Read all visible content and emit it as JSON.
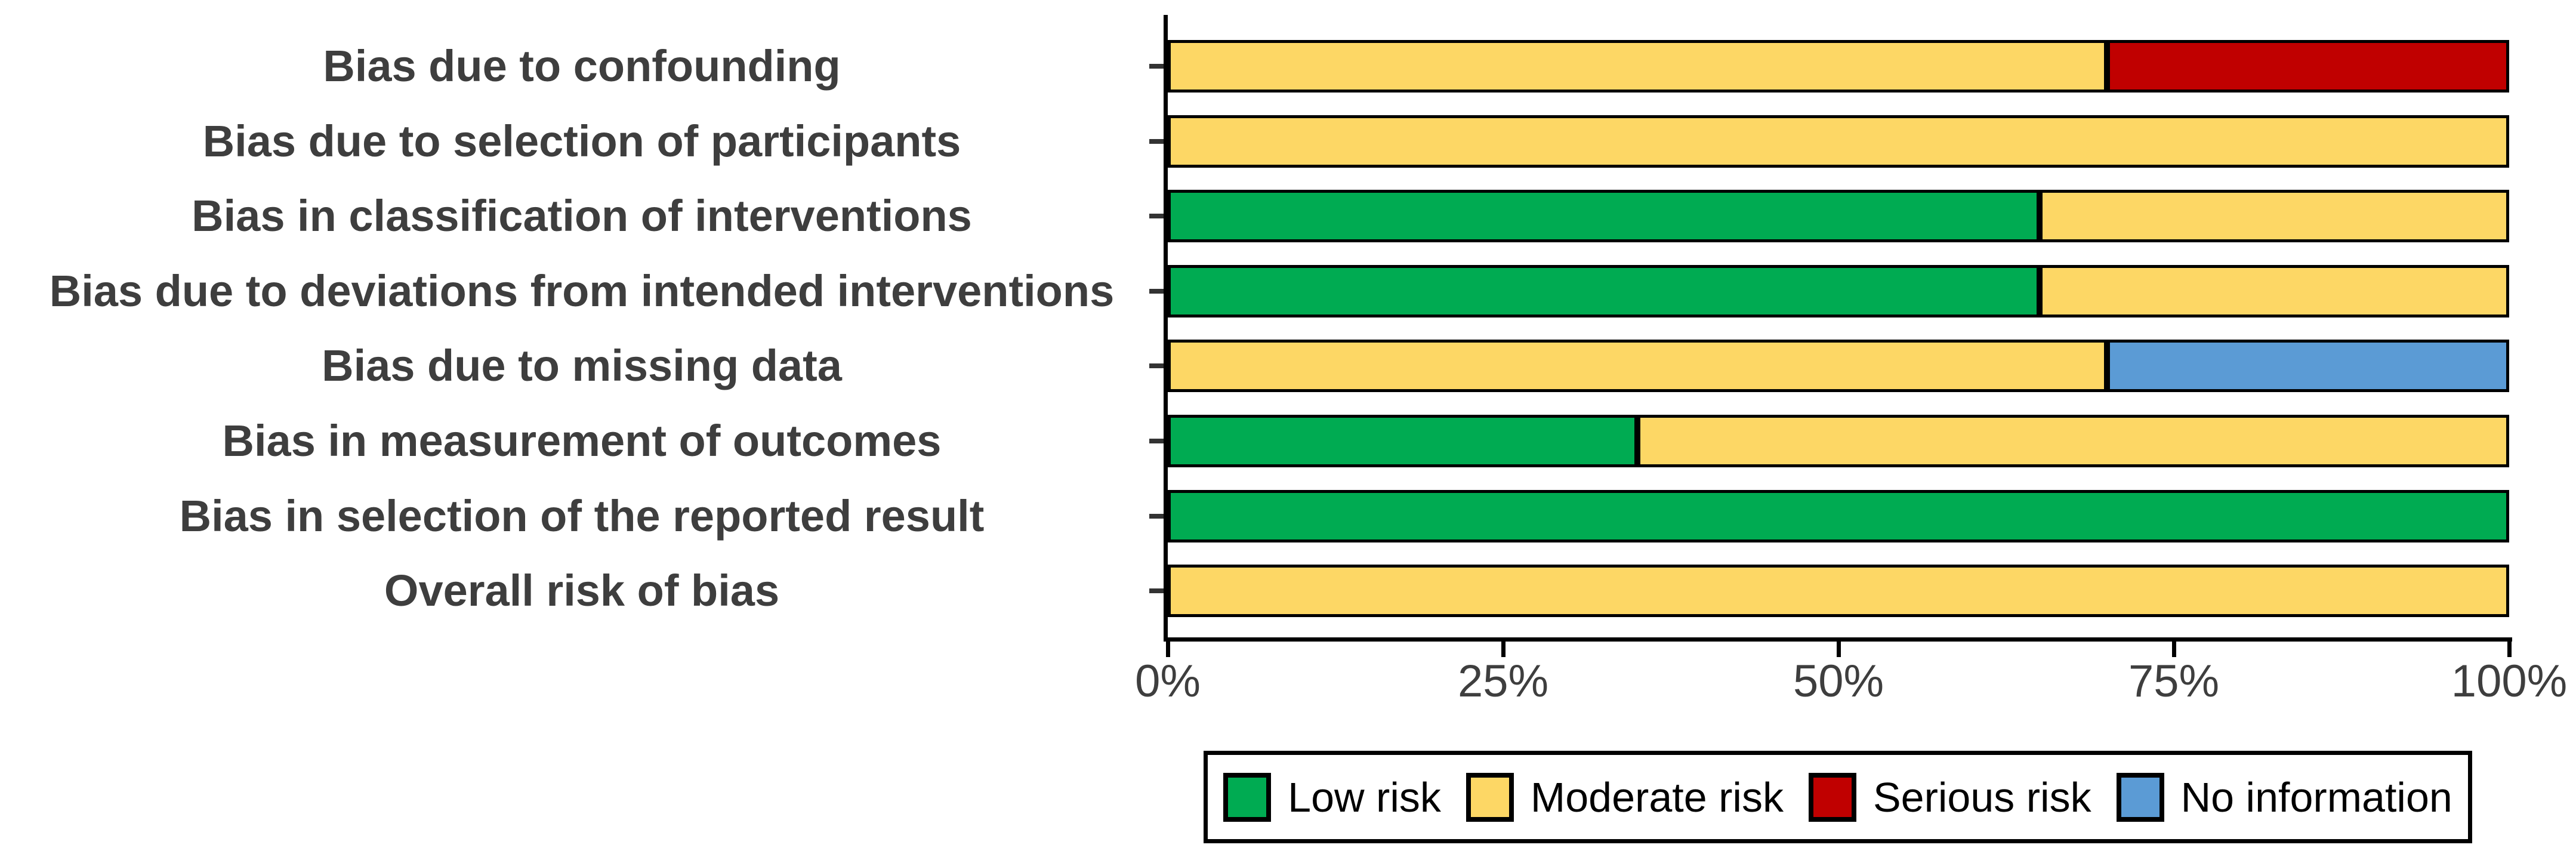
{
  "chart_data": {
    "type": "bar",
    "orientation": "horizontal",
    "stacked": true,
    "title": "",
    "categories": [
      "Bias due to confounding",
      "Bias due to selection of participants",
      "Bias in classification of interventions",
      "Bias due to deviations from intended interventions",
      "Bias due to missing data",
      "Bias in measurement of outcomes",
      "Bias in selection of the reported result",
      "Overall risk of bias"
    ],
    "series": [
      {
        "name": "Low risk",
        "color": "#00ab52",
        "values": [
          0,
          0,
          65,
          65,
          0,
          35,
          100,
          0
        ]
      },
      {
        "name": "Moderate risk",
        "color": "#fdd765",
        "values": [
          70,
          100,
          35,
          35,
          70,
          65,
          0,
          100
        ]
      },
      {
        "name": "Serious risk",
        "color": "#c00000",
        "values": [
          30,
          0,
          0,
          0,
          0,
          0,
          0,
          0
        ]
      },
      {
        "name": "No information",
        "color": "#5b9bd5",
        "values": [
          0,
          0,
          0,
          0,
          30,
          0,
          0,
          0
        ]
      }
    ],
    "x_axis": {
      "range": [
        0,
        100
      ],
      "tick_values": [
        0,
        25,
        50,
        75,
        100
      ],
      "tick_labels": [
        "0%",
        "25%",
        "50%",
        "75%",
        "100%"
      ],
      "grid": false
    },
    "legend": {
      "position": "bottom",
      "entries": [
        "Low risk",
        "Moderate risk",
        "Serious risk",
        "No information"
      ]
    },
    "colors": {
      "label_text": "#3e3e3e",
      "axis": "#000000",
      "background": "#ffffff"
    }
  }
}
